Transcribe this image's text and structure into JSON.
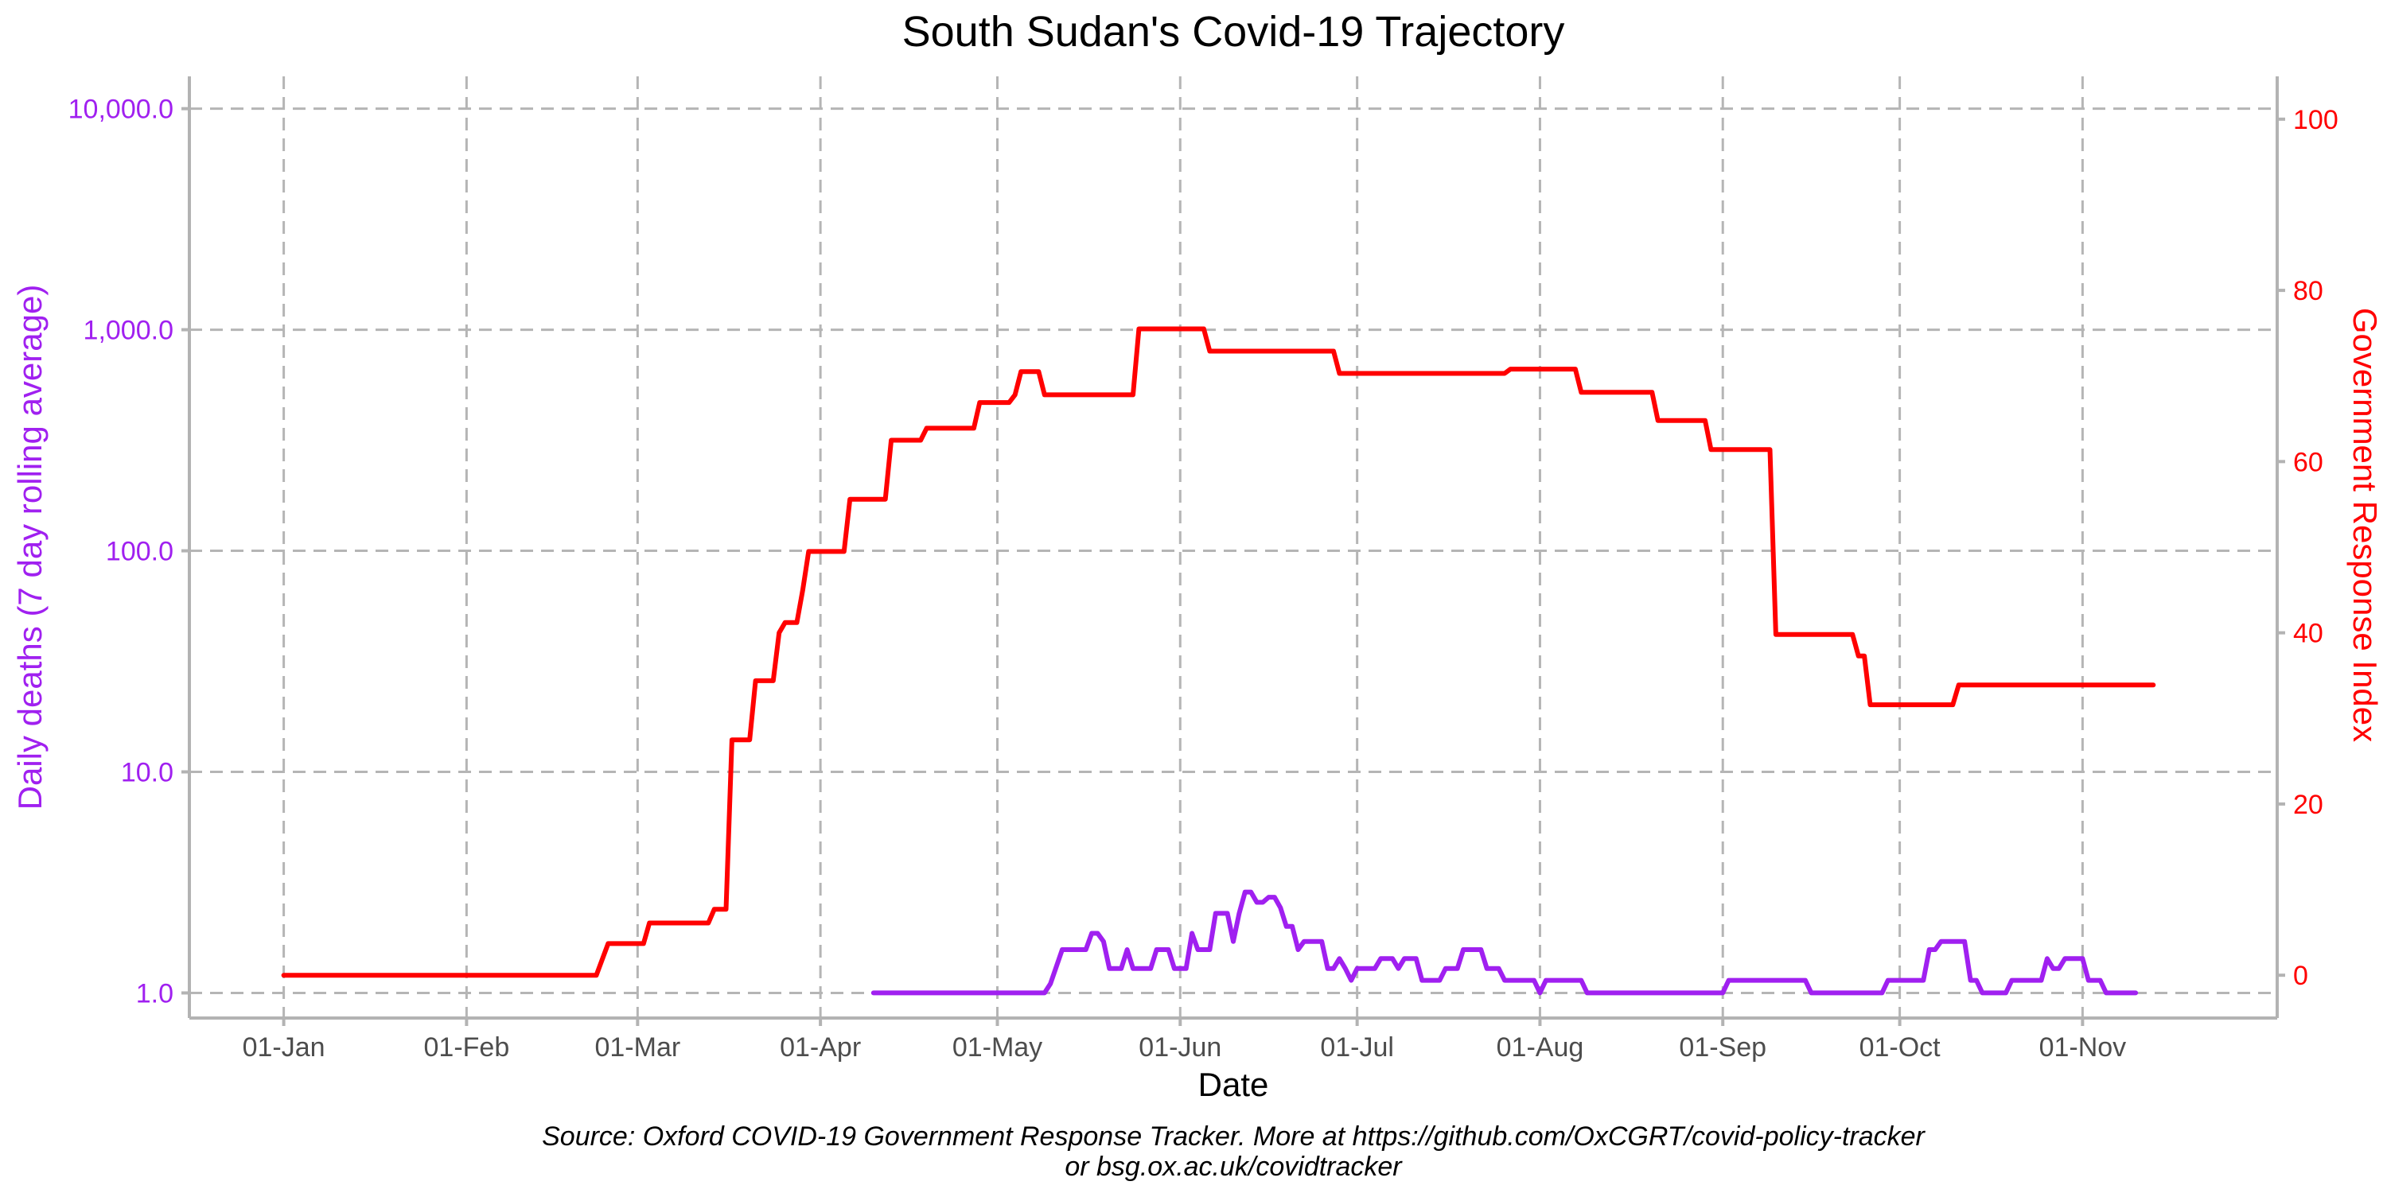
{
  "chart_data": {
    "type": "line",
    "title": "South Sudan's Covid-19 Trajectory",
    "xlabel": "Date",
    "ylabel_left": "Daily deaths (7 day rolling average)",
    "ylabel_right": "Government Response Index",
    "caption_line1": "Source: Oxford COVID-19 Government Response Tracker. More at https://github.com/OxCGRT/covid-policy-tracker",
    "caption_line2": "or bsg.ox.ac.uk/covidtracker",
    "x_ticks": [
      "01-Jan",
      "01-Feb",
      "01-Mar",
      "01-Apr",
      "01-May",
      "01-Jun",
      "01-Jul",
      "01-Aug",
      "01-Sep",
      "01-Oct",
      "01-Nov"
    ],
    "x_tick_days": [
      1,
      32,
      61,
      92,
      122,
      153,
      183,
      214,
      245,
      275,
      306
    ],
    "xlim_days": [
      -15,
      339
    ],
    "y_left_scale": "log10",
    "y_left_ticks": [
      "1.0",
      "10.0",
      "100.0",
      "1,000.0",
      "10,000.0"
    ],
    "y_left_tick_values": [
      1,
      10,
      100,
      1000,
      10000
    ],
    "y_left_range": [
      0.77,
      14000
    ],
    "y_right_ticks": [
      "0",
      "20",
      "40",
      "60",
      "80",
      "100"
    ],
    "y_right_tick_values": [
      0,
      20,
      40,
      60,
      80,
      100
    ],
    "y_right_range": [
      -5,
      105
    ],
    "grid": true,
    "colors": {
      "deaths": "#a020f0",
      "index": "#ff0000",
      "grid": "#b5b5b5",
      "axis": "#b3b3b3"
    },
    "series": [
      {
        "name": "Government Response Index",
        "axis": "right",
        "points": [
          [
            1,
            0
          ],
          [
            54,
            0
          ],
          [
            56,
            3.7
          ],
          [
            62,
            3.7
          ],
          [
            63,
            6.1
          ],
          [
            73,
            6.1
          ],
          [
            74,
            7.7
          ],
          [
            76,
            7.7
          ],
          [
            77,
            27.5
          ],
          [
            80,
            27.5
          ],
          [
            81,
            34.4
          ],
          [
            84,
            34.4
          ],
          [
            85,
            40
          ],
          [
            86,
            41.2
          ],
          [
            88,
            41.2
          ],
          [
            89,
            45
          ],
          [
            90,
            49.5
          ],
          [
            96,
            49.5
          ],
          [
            97,
            55.6
          ],
          [
            103,
            55.6
          ],
          [
            104,
            62.5
          ],
          [
            109,
            62.5
          ],
          [
            110,
            63.9
          ],
          [
            118,
            63.9
          ],
          [
            119,
            66.9
          ],
          [
            124,
            66.9
          ],
          [
            125,
            67.8
          ],
          [
            126,
            70.5
          ],
          [
            129,
            70.5
          ],
          [
            130,
            67.8
          ],
          [
            145,
            67.8
          ],
          [
            146,
            75.5
          ],
          [
            157,
            75.5
          ],
          [
            158,
            72.9
          ],
          [
            179,
            72.9
          ],
          [
            180,
            70.3
          ],
          [
            208,
            70.3
          ],
          [
            209,
            70.8
          ],
          [
            220,
            70.8
          ],
          [
            221,
            68.1
          ],
          [
            233,
            68.1
          ],
          [
            234,
            64.8
          ],
          [
            242,
            64.8
          ],
          [
            243,
            61.4
          ],
          [
            253,
            61.4
          ],
          [
            254,
            39.8
          ],
          [
            267,
            39.8
          ],
          [
            268,
            37.3
          ],
          [
            269,
            37.3
          ],
          [
            270,
            31.6
          ],
          [
            284,
            31.6
          ],
          [
            285,
            33.9
          ],
          [
            318,
            33.9
          ]
        ]
      },
      {
        "name": "Daily deaths (7 day rolling average)",
        "axis": "left",
        "points": [
          [
            101,
            1
          ],
          [
            130,
            1
          ],
          [
            131,
            1.1
          ],
          [
            133,
            1.57
          ],
          [
            137,
            1.57
          ],
          [
            138,
            1.86
          ],
          [
            139,
            1.86
          ],
          [
            140,
            1.71
          ],
          [
            141,
            1.29
          ],
          [
            143,
            1.29
          ],
          [
            144,
            1.57
          ],
          [
            145,
            1.29
          ],
          [
            148,
            1.29
          ],
          [
            149,
            1.57
          ],
          [
            151,
            1.57
          ],
          [
            152,
            1.29
          ],
          [
            154,
            1.29
          ],
          [
            155,
            1.86
          ],
          [
            156,
            1.57
          ],
          [
            158,
            1.57
          ],
          [
            159,
            2.29
          ],
          [
            161,
            2.29
          ],
          [
            162,
            1.71
          ],
          [
            163,
            2.29
          ],
          [
            164,
            2.86
          ],
          [
            165,
            2.86
          ],
          [
            166,
            2.57
          ],
          [
            167,
            2.57
          ],
          [
            168,
            2.71
          ],
          [
            169,
            2.71
          ],
          [
            170,
            2.43
          ],
          [
            171,
            2.0
          ],
          [
            172,
            2.0
          ],
          [
            173,
            1.57
          ],
          [
            174,
            1.71
          ],
          [
            177,
            1.71
          ],
          [
            178,
            1.29
          ],
          [
            179,
            1.29
          ],
          [
            180,
            1.43
          ],
          [
            181,
            1.29
          ],
          [
            182,
            1.14
          ],
          [
            183,
            1.29
          ],
          [
            186,
            1.29
          ],
          [
            187,
            1.43
          ],
          [
            189,
            1.43
          ],
          [
            190,
            1.29
          ],
          [
            191,
            1.43
          ],
          [
            193,
            1.43
          ],
          [
            194,
            1.14
          ],
          [
            197,
            1.14
          ],
          [
            198,
            1.29
          ],
          [
            200,
            1.29
          ],
          [
            201,
            1.57
          ],
          [
            204,
            1.57
          ],
          [
            205,
            1.29
          ],
          [
            207,
            1.29
          ],
          [
            208,
            1.14
          ],
          [
            213,
            1.14
          ],
          [
            214,
            1.0
          ],
          [
            215,
            1.14
          ],
          [
            221,
            1.14
          ],
          [
            222,
            1.0
          ],
          [
            245,
            1.0
          ],
          [
            246,
            1.14
          ],
          [
            259,
            1.14
          ],
          [
            260,
            1.0
          ],
          [
            272,
            1.0
          ],
          [
            273,
            1.14
          ],
          [
            279,
            1.14
          ],
          [
            280,
            1.57
          ],
          [
            281,
            1.57
          ],
          [
            282,
            1.71
          ],
          [
            286,
            1.71
          ],
          [
            287,
            1.14
          ],
          [
            288,
            1.14
          ],
          [
            289,
            1.0
          ],
          [
            293,
            1.0
          ],
          [
            294,
            1.14
          ],
          [
            299,
            1.14
          ],
          [
            300,
            1.43
          ],
          [
            301,
            1.29
          ],
          [
            302,
            1.29
          ],
          [
            303,
            1.43
          ],
          [
            306,
            1.43
          ],
          [
            307,
            1.14
          ],
          [
            309,
            1.14
          ],
          [
            310,
            1.0
          ],
          [
            315,
            1.0
          ]
        ]
      }
    ]
  }
}
